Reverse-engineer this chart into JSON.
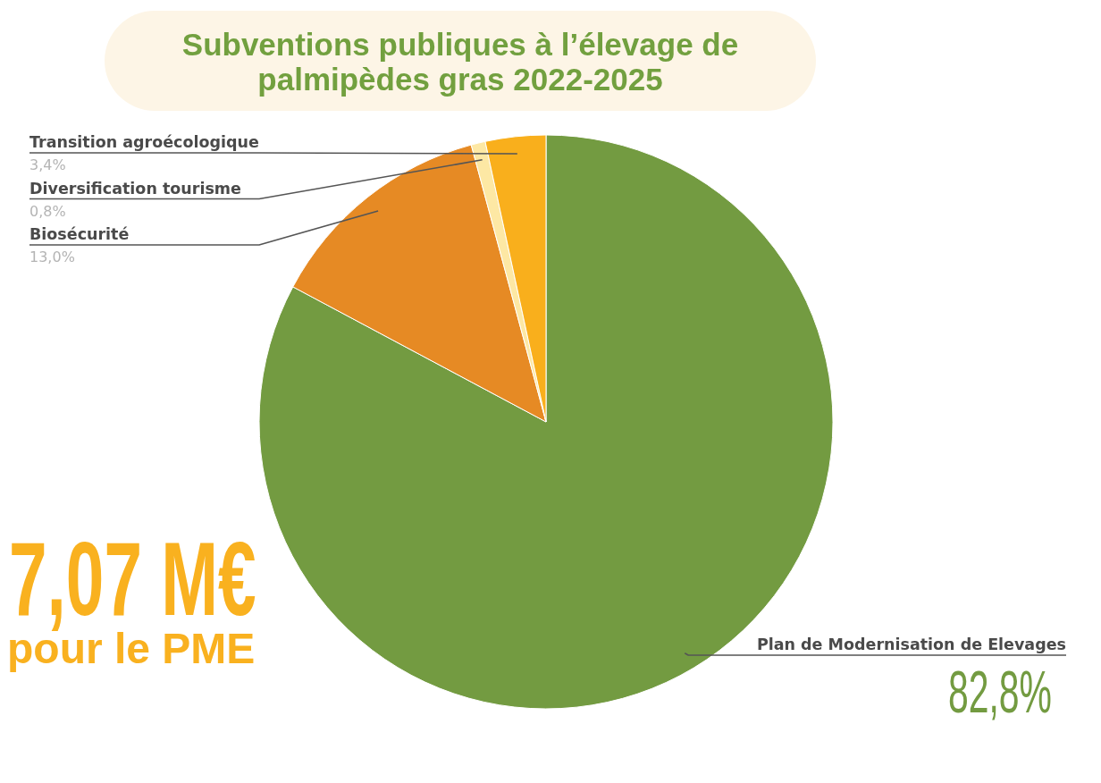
{
  "chart_data": {
    "type": "pie",
    "title": "Subventions publiques à l’élevage de palmipèdes gras 2022-2025",
    "categories": [
      "Plan de Modernisation de Elevages",
      "Biosécurité",
      "Diversification tourisme",
      "Transition agroécologique"
    ],
    "values": [
      82.8,
      13.0,
      0.8,
      3.4
    ],
    "colors": [
      "#739b41",
      "#e68a24",
      "#fde8a4",
      "#f9af1c"
    ],
    "value_labels": [
      "82,8%",
      "13,0%",
      "0,8%",
      "3,4%"
    ],
    "annotations": [
      "7,07 M€",
      "pour le PME"
    ]
  }
}
